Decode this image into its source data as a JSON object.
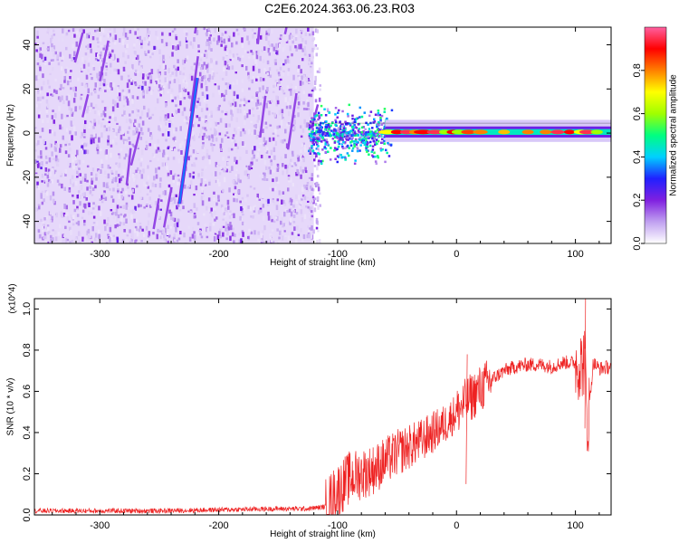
{
  "title": "C2E6.2024.363.06.23.R03",
  "chart_data": [
    {
      "type": "heatmap",
      "xlabel": "Height of straight line (km)",
      "ylabel": "Frequency (Hz)",
      "xlim": [
        -355,
        130
      ],
      "ylim": [
        -50,
        48
      ],
      "x_ticks": [
        -300,
        -200,
        -100,
        0,
        100
      ],
      "y_ticks": [
        -40,
        -20,
        0,
        20,
        40
      ],
      "colorbar": {
        "label": "Normalized spectral amplitude",
        "ticks": [
          "0.0",
          "0.2",
          "0.4",
          "0.6",
          "0.8"
        ],
        "tick_values": [
          0.0,
          0.2,
          0.4,
          0.6,
          0.8
        ],
        "range": [
          0.0,
          1.0
        ],
        "colormap": [
          "#ffffff",
          "#c0a0f0",
          "#8020e0",
          "#2020ff",
          "#00d0ff",
          "#00ff80",
          "#a0ff00",
          "#ffff00",
          "#ff8000",
          "#ff0000",
          "#ff60a0"
        ]
      },
      "features": [
        {
          "name": "broadband noise",
          "x_range": [
            -355,
            -120
          ],
          "y_range": [
            -50,
            48
          ],
          "level": 0.15
        },
        {
          "name": "steep line",
          "x_start": -233,
          "x_end": -218,
          "y_start": -32,
          "y_end": 25,
          "level": 0.35
        },
        {
          "name": "signal band",
          "x_range": [
            -125,
            130
          ],
          "y_center": 0.5,
          "level": 0.9
        }
      ]
    },
    {
      "type": "line",
      "xlabel": "Height of straight line (km)",
      "ylabel": "SNR (10 * v/v)",
      "y_multiplier": "(x10^4)",
      "xlim": [
        -355,
        130
      ],
      "ylim": [
        0,
        1.05
      ],
      "x_ticks": [
        -300,
        -200,
        -100,
        0,
        100
      ],
      "y_ticks": [
        "0.0",
        "0.2",
        "0.4",
        "0.6",
        "0.8",
        "1.0"
      ],
      "y_tick_values": [
        0.0,
        0.2,
        0.4,
        0.6,
        0.8,
        1.0
      ],
      "color": "#ee2222",
      "x": [
        -355,
        -300,
        -250,
        -200,
        -150,
        -125,
        -110,
        -100,
        -90,
        -80,
        -70,
        -60,
        -50,
        -40,
        -30,
        -20,
        -10,
        0,
        5,
        10,
        20,
        30,
        40,
        50,
        60,
        70,
        80,
        90,
        100,
        105,
        108,
        110,
        115,
        120,
        130
      ],
      "values": [
        0.02,
        0.02,
        0.02,
        0.025,
        0.03,
        0.03,
        0.04,
        0.12,
        0.18,
        0.2,
        0.22,
        0.26,
        0.3,
        0.33,
        0.36,
        0.4,
        0.44,
        0.5,
        0.53,
        0.56,
        0.61,
        0.66,
        0.7,
        0.72,
        0.73,
        0.73,
        0.72,
        0.74,
        0.74,
        0.73,
        0.76,
        0.42,
        0.74,
        0.71,
        0.72
      ]
    }
  ]
}
